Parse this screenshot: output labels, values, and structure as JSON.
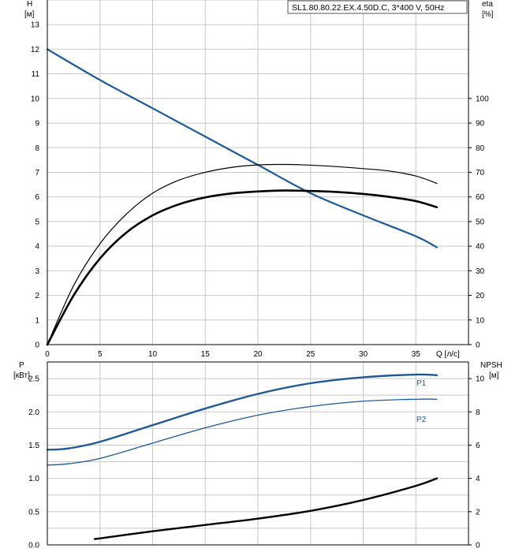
{
  "header": {
    "pump_label": "SL1.80.80.22.EX.4.50D.C, 3*400 V, 50Hz"
  },
  "axes": {
    "top_left_name": "H",
    "top_left_unit": "[м]",
    "top_right_name": "eta",
    "top_right_unit": "[%]",
    "x_label": "Q [л/с]",
    "bottom_left_name": "P",
    "bottom_left_unit": "[кВт]",
    "bottom_right_name": "NPSH",
    "bottom_right_unit": "[м]"
  },
  "colors": {
    "grid": "#c8c8c8",
    "axis": "#000000",
    "blue_curve": "#1f5a96",
    "black_curve": "#000000",
    "series_label": "#1f5a96"
  },
  "chart_data": [
    {
      "type": "line",
      "title": "",
      "xlabel": "Q [л/с]",
      "ylabel": "H [м]",
      "y2label": "eta [%]",
      "xlim": [
        0,
        40
      ],
      "ylim": [
        0,
        14
      ],
      "y2lim": [
        0,
        140
      ],
      "x_ticks": [
        0,
        5,
        10,
        15,
        20,
        25,
        30,
        35
      ],
      "y_ticks": [
        0,
        1,
        2,
        3,
        4,
        5,
        6,
        7,
        8,
        9,
        10,
        11,
        12,
        13
      ],
      "y2_ticks": [
        0,
        10,
        20,
        30,
        40,
        50,
        60,
        70,
        80,
        90,
        100
      ],
      "grid": true,
      "series": [
        {
          "axis": "left",
          "color": "#1f5a96",
          "width": 2.2,
          "x": [
            0,
            5,
            10,
            15,
            20,
            25,
            30,
            35,
            37
          ],
          "y": [
            12.0,
            10.75,
            9.6,
            8.45,
            7.3,
            6.15,
            5.25,
            4.4,
            3.95
          ]
        },
        {
          "axis": "right",
          "color": "#000000",
          "width": 1.2,
          "x": [
            0,
            2.5,
            5,
            7.5,
            10,
            12.5,
            15,
            17.5,
            20,
            22.5,
            25,
            27.5,
            30,
            32.5,
            35,
            37
          ],
          "y": [
            0,
            24,
            41,
            53,
            61.5,
            66.8,
            70.0,
            72.0,
            73.0,
            73.2,
            72.9,
            72.3,
            71.5,
            70.5,
            68.5,
            65.5
          ]
        },
        {
          "axis": "right",
          "color": "#000000",
          "width": 2.6,
          "x": [
            0,
            2.5,
            5,
            7.5,
            10,
            12.5,
            15,
            17.5,
            20,
            22.5,
            25,
            27.5,
            30,
            32.5,
            35,
            37
          ],
          "y": [
            0,
            20,
            35,
            45.5,
            52.5,
            57.0,
            59.8,
            61.4,
            62.2,
            62.6,
            62.4,
            62.0,
            61.2,
            60.0,
            58.3,
            55.8
          ]
        }
      ]
    },
    {
      "type": "line",
      "title": "",
      "xlabel": "",
      "ylabel": "P [кВт]",
      "y2label": "NPSH [м]",
      "xlim": [
        0,
        40
      ],
      "ylim": [
        0,
        2.75
      ],
      "y2lim": [
        0,
        11
      ],
      "y_ticks": [
        0.0,
        0.5,
        1.0,
        1.5,
        2.0,
        2.5
      ],
      "y_tick_labels": [
        "0.0",
        "0.5",
        "1.0",
        "1.5",
        "2.0",
        "2.5"
      ],
      "y2_ticks": [
        0,
        2,
        4,
        6,
        8,
        10
      ],
      "grid": true,
      "series": [
        {
          "name": "P1",
          "axis": "left",
          "color": "#1f5a96",
          "width": 2.4,
          "x": [
            0,
            2,
            5,
            10,
            15,
            20,
            25,
            30,
            35,
            37
          ],
          "y": [
            1.43,
            1.45,
            1.55,
            1.8,
            2.05,
            2.27,
            2.43,
            2.52,
            2.56,
            2.55
          ]
        },
        {
          "name": "P2",
          "axis": "left",
          "color": "#1f5a96",
          "width": 1.3,
          "x": [
            0,
            2,
            5,
            10,
            15,
            20,
            25,
            30,
            35,
            37
          ],
          "y": [
            1.2,
            1.22,
            1.3,
            1.53,
            1.76,
            1.95,
            2.08,
            2.16,
            2.19,
            2.19
          ]
        },
        {
          "axis": "right",
          "color": "#000000",
          "width": 2.4,
          "x": [
            4.5,
            10,
            15,
            20,
            25,
            30,
            35,
            37
          ],
          "y": [
            0.35,
            0.82,
            1.2,
            1.58,
            2.05,
            2.7,
            3.55,
            4.0
          ]
        }
      ]
    }
  ]
}
